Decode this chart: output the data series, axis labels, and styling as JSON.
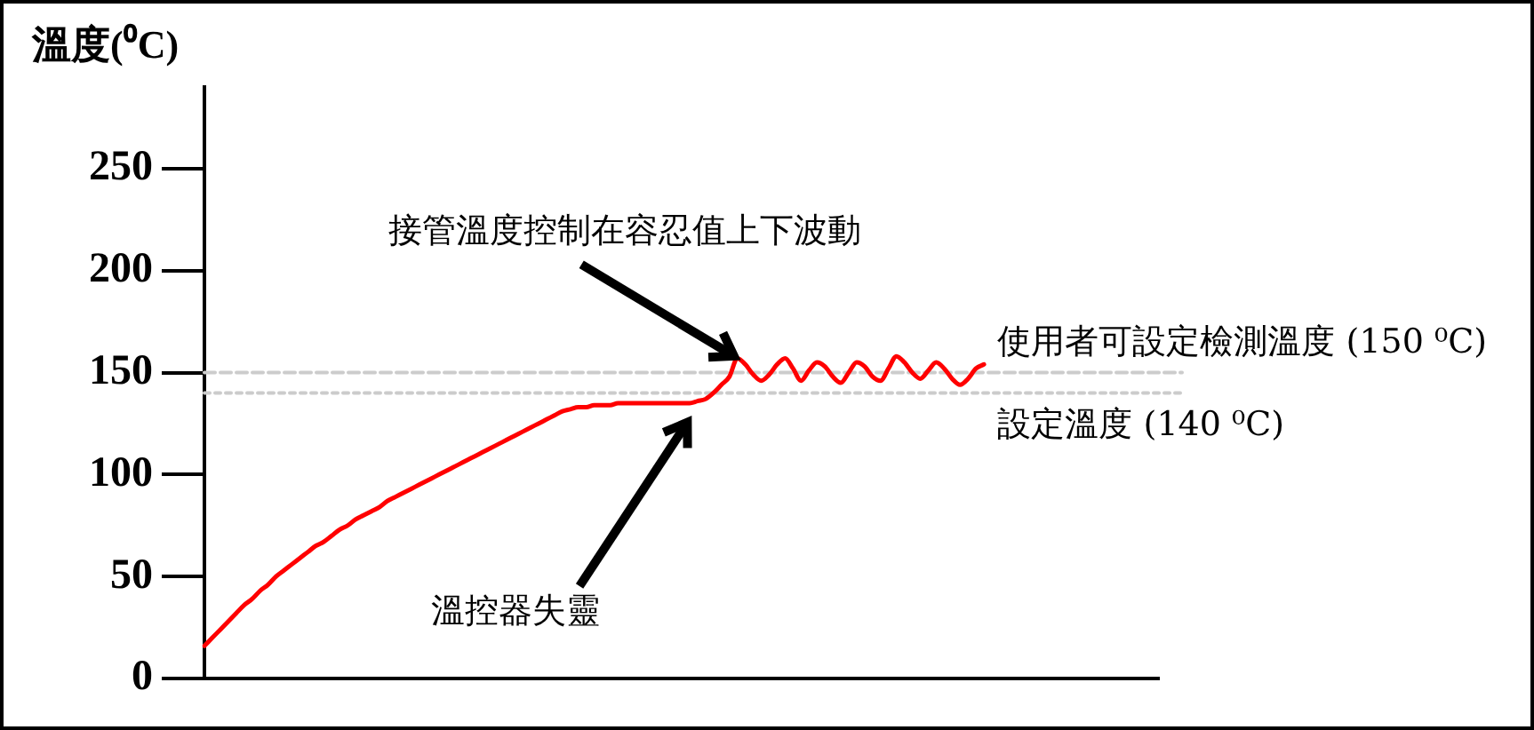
{
  "chart_data": {
    "type": "line",
    "ylabel": "溫度(⁰C)",
    "categories": [
      null,
      null,
      null,
      null,
      null,
      null,
      null,
      null,
      null,
      null,
      null,
      null,
      null,
      null,
      null,
      null,
      null,
      null,
      null,
      null,
      null,
      null,
      null,
      null,
      null,
      null,
      null,
      null,
      null,
      null,
      null,
      null,
      null,
      null,
      null,
      null,
      null,
      null,
      null,
      null,
      null,
      null,
      null,
      null,
      null,
      null,
      null,
      null,
      null,
      null,
      null,
      null,
      null,
      null,
      null,
      null,
      null,
      null,
      null,
      null,
      null,
      null,
      null,
      null,
      null,
      null,
      null,
      null,
      null,
      null,
      null,
      null,
      null,
      null,
      null,
      null,
      null,
      null,
      null,
      null,
      null,
      null,
      null,
      null,
      null,
      null,
      null,
      null,
      null,
      null,
      null,
      null,
      null,
      null,
      null,
      null,
      null,
      null,
      null,
      null,
      null,
      null,
      null,
      null,
      null,
      null,
      null,
      null,
      null,
      null,
      null,
      null,
      null,
      null,
      null,
      null,
      null,
      null,
      null,
      null,
      null
    ],
    "values": [
      16,
      20,
      24,
      28,
      32,
      36,
      39,
      43,
      46,
      50,
      53,
      56,
      59,
      62,
      65,
      67,
      70,
      73,
      75,
      78,
      80,
      82,
      84,
      87,
      89,
      91,
      93,
      95,
      97,
      99,
      101,
      103,
      105,
      107,
      109,
      111,
      113,
      115,
      117,
      119,
      121,
      123,
      125,
      127,
      129,
      131,
      132,
      133,
      133,
      134,
      134,
      134,
      135,
      135,
      135,
      135,
      135,
      135,
      135,
      135,
      135,
      135,
      136,
      137,
      140,
      144,
      148,
      157,
      154,
      149,
      146,
      149,
      154,
      157,
      152,
      146,
      151,
      155,
      153,
      148,
      145,
      150,
      155,
      153,
      148,
      146,
      152,
      158,
      155,
      150,
      147,
      151,
      155,
      152,
      147,
      144,
      147,
      152,
      154,
      null,
      null,
      null,
      null,
      null,
      null,
      null,
      null,
      null,
      null,
      null,
      null,
      null,
      null,
      null,
      null,
      null,
      null,
      null,
      null,
      null,
      null
    ],
    "color": "#ff0000",
    "ylim": [
      0,
      290
    ],
    "yticks": [
      0,
      50,
      100,
      150,
      200,
      250
    ],
    "tick_labels": "y",
    "grid": false,
    "legend": false,
    "marker": "none",
    "line_style": "solid",
    "ref_lines": [
      {
        "axis": "y",
        "value": 150,
        "label": "使用者可設定檢測溫度 (150 ⁰C)",
        "color": "#cccccc",
        "line_style": "dashed"
      },
      {
        "axis": "y",
        "value": 140,
        "label": "設定溫度 (140 ⁰C)",
        "color": "#cccccc",
        "line_style": "dotted"
      }
    ],
    "annotations": [
      "接管溫度控制在容忍值上下波動",
      "溫控器失靈"
    ]
  }
}
